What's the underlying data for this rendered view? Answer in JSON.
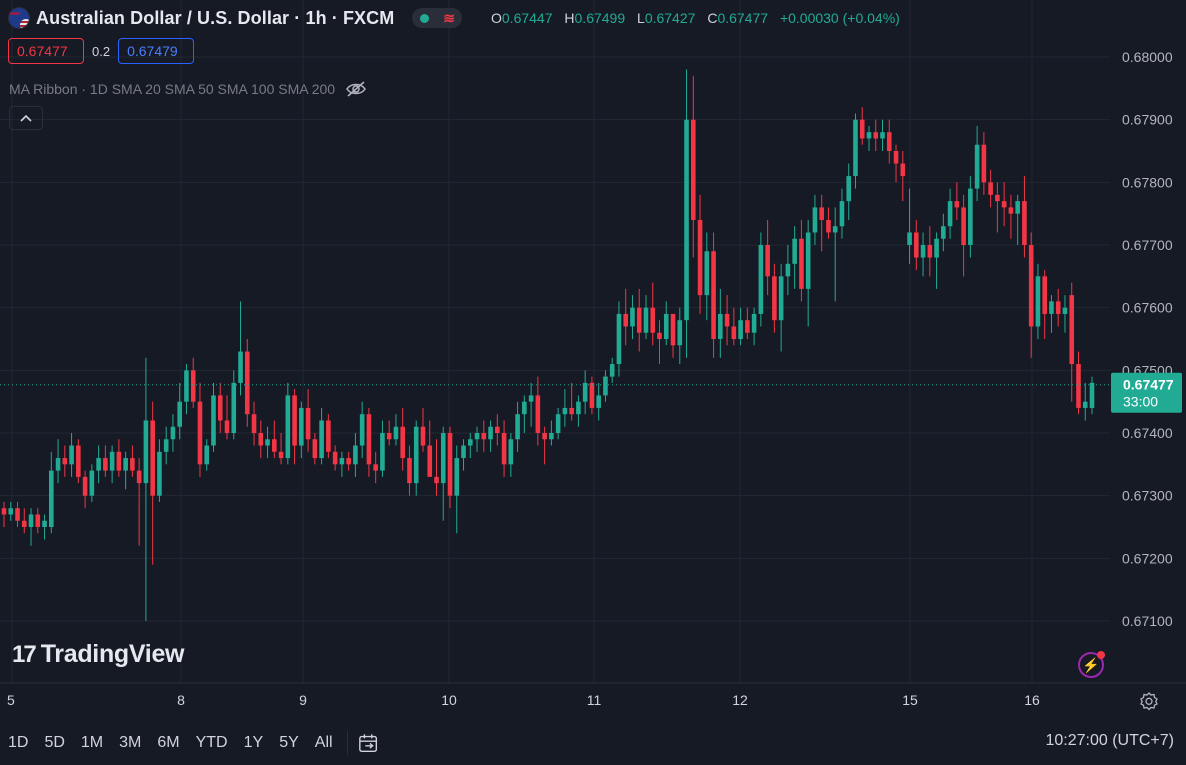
{
  "header": {
    "title": "Australian Dollar / U.S. Dollar · 1h · FXCM",
    "ohlc": [
      {
        "key": "O",
        "value": "0.67447"
      },
      {
        "key": "H",
        "value": "0.67499"
      },
      {
        "key": "L",
        "value": "0.67427"
      },
      {
        "key": "C",
        "value": "0.67477"
      }
    ],
    "change": "+0.00030 (+0.04%)"
  },
  "trade": {
    "sell_price": "0.67477",
    "spread": "0.2",
    "buy_price": "0.67479"
  },
  "indicator": {
    "label": "MA Ribbon · 1D SMA 20 SMA 50 SMA 100 SMA 200"
  },
  "watermark": {
    "mark": "17",
    "text": "TradingView"
  },
  "last_price": {
    "price": "0.67477",
    "countdown": "33:00"
  },
  "range_buttons": [
    "1D",
    "5D",
    "1M",
    "3M",
    "6M",
    "YTD",
    "1Y",
    "5Y",
    "All"
  ],
  "clock": "10:27:00 (UTC+7)",
  "colors": {
    "up": "#22ab94",
    "down": "#f23645",
    "background": "#161a25",
    "grid": "#232733"
  },
  "icons": [
    "flag-aud-usd-icon",
    "eye-off-icon",
    "chevron-up-icon",
    "lightning-icon",
    "gear-icon",
    "calendar-goto-icon"
  ],
  "chart_data": {
    "type": "candlestick",
    "symbol": "AUDUSD",
    "interval": "1h",
    "y_ticks": [
      "0.68000",
      "0.67900",
      "0.67800",
      "0.67700",
      "0.67600",
      "0.67500",
      "0.67400",
      "0.67300",
      "0.67200",
      "0.67100"
    ],
    "x_ticks": [
      "5",
      "8",
      "9",
      "10",
      "11",
      "12",
      "15",
      "16"
    ],
    "ylim": [
      0.6703,
      0.6805
    ],
    "last_price": 0.67477,
    "ohlc": [
      [
        0.6728,
        0.6729,
        0.6725,
        0.6727
      ],
      [
        0.6727,
        0.6729,
        0.6726,
        0.6728
      ],
      [
        0.6728,
        0.6729,
        0.6725,
        0.6726
      ],
      [
        0.6726,
        0.6728,
        0.6724,
        0.6725
      ],
      [
        0.6725,
        0.6728,
        0.6722,
        0.6727
      ],
      [
        0.6727,
        0.6728,
        0.6724,
        0.6725
      ],
      [
        0.6725,
        0.6727,
        0.6723,
        0.6726
      ],
      [
        0.6725,
        0.6737,
        0.6724,
        0.6734
      ],
      [
        0.6734,
        0.6739,
        0.6732,
        0.6736
      ],
      [
        0.6736,
        0.6738,
        0.6733,
        0.6735
      ],
      [
        0.6735,
        0.674,
        0.6733,
        0.6738
      ],
      [
        0.6738,
        0.6739,
        0.6732,
        0.6733
      ],
      [
        0.6733,
        0.6734,
        0.6728,
        0.673
      ],
      [
        0.673,
        0.6735,
        0.6729,
        0.6734
      ],
      [
        0.6734,
        0.6738,
        0.6732,
        0.6736
      ],
      [
        0.6736,
        0.6738,
        0.6733,
        0.6734
      ],
      [
        0.6734,
        0.6738,
        0.6732,
        0.6737
      ],
      [
        0.6737,
        0.6739,
        0.6733,
        0.6734
      ],
      [
        0.6734,
        0.6737,
        0.6731,
        0.6736
      ],
      [
        0.6736,
        0.6738,
        0.6733,
        0.6734
      ],
      [
        0.6734,
        0.6736,
        0.6722,
        0.6732
      ],
      [
        0.6732,
        0.6752,
        0.671,
        0.6742
      ],
      [
        0.6742,
        0.6745,
        0.6719,
        0.673
      ],
      [
        0.673,
        0.6739,
        0.6729,
        0.6737
      ],
      [
        0.6737,
        0.6741,
        0.6735,
        0.6739
      ],
      [
        0.6739,
        0.6743,
        0.6737,
        0.6741
      ],
      [
        0.6741,
        0.6748,
        0.6739,
        0.6745
      ],
      [
        0.6745,
        0.6751,
        0.6743,
        0.675
      ],
      [
        0.675,
        0.6752,
        0.6744,
        0.6745
      ],
      [
        0.6745,
        0.6748,
        0.6733,
        0.6735
      ],
      [
        0.6735,
        0.6739,
        0.6734,
        0.6738
      ],
      [
        0.6738,
        0.6748,
        0.6737,
        0.6746
      ],
      [
        0.6746,
        0.6748,
        0.674,
        0.6742
      ],
      [
        0.6742,
        0.6746,
        0.6739,
        0.674
      ],
      [
        0.674,
        0.675,
        0.6739,
        0.6748
      ],
      [
        0.6748,
        0.6761,
        0.6746,
        0.6753
      ],
      [
        0.6753,
        0.6755,
        0.6741,
        0.6743
      ],
      [
        0.6743,
        0.6745,
        0.6738,
        0.674
      ],
      [
        0.674,
        0.6742,
        0.6736,
        0.6738
      ],
      [
        0.6738,
        0.6741,
        0.6736,
        0.6739
      ],
      [
        0.6739,
        0.6742,
        0.6736,
        0.6737
      ],
      [
        0.6737,
        0.674,
        0.6735,
        0.6736
      ],
      [
        0.6736,
        0.6748,
        0.6735,
        0.6746
      ],
      [
        0.6746,
        0.6747,
        0.6735,
        0.6738
      ],
      [
        0.6738,
        0.6745,
        0.6736,
        0.6744
      ],
      [
        0.6744,
        0.6747,
        0.6737,
        0.6739
      ],
      [
        0.6739,
        0.674,
        0.6735,
        0.6736
      ],
      [
        0.6736,
        0.6744,
        0.6735,
        0.6742
      ],
      [
        0.6742,
        0.6743,
        0.6736,
        0.6737
      ],
      [
        0.6737,
        0.6738,
        0.6734,
        0.6735
      ],
      [
        0.6735,
        0.6737,
        0.6733,
        0.6736
      ],
      [
        0.6736,
        0.6737,
        0.6734,
        0.6735
      ],
      [
        0.6735,
        0.674,
        0.6733,
        0.6738
      ],
      [
        0.6738,
        0.6745,
        0.6736,
        0.6743
      ],
      [
        0.6743,
        0.6744,
        0.6733,
        0.6735
      ],
      [
        0.6735,
        0.6737,
        0.6732,
        0.6734
      ],
      [
        0.6734,
        0.6742,
        0.6733,
        0.674
      ],
      [
        0.674,
        0.6742,
        0.6738,
        0.6739
      ],
      [
        0.6739,
        0.6743,
        0.6738,
        0.6741
      ],
      [
        0.6741,
        0.6744,
        0.6734,
        0.6736
      ],
      [
        0.6736,
        0.6738,
        0.673,
        0.6732
      ],
      [
        0.6732,
        0.6742,
        0.673,
        0.6741
      ],
      [
        0.6741,
        0.6744,
        0.6737,
        0.6738
      ],
      [
        0.6738,
        0.6742,
        0.6733,
        0.6733
      ],
      [
        0.6733,
        0.6739,
        0.673,
        0.6732
      ],
      [
        0.6732,
        0.6741,
        0.6726,
        0.674
      ],
      [
        0.674,
        0.6741,
        0.6728,
        0.673
      ],
      [
        0.673,
        0.6738,
        0.6724,
        0.6736
      ],
      [
        0.6736,
        0.6739,
        0.6734,
        0.6738
      ],
      [
        0.6738,
        0.674,
        0.6736,
        0.6739
      ],
      [
        0.6739,
        0.6741,
        0.6737,
        0.674
      ],
      [
        0.674,
        0.6742,
        0.6737,
        0.6739
      ],
      [
        0.6739,
        0.6742,
        0.6737,
        0.6741
      ],
      [
        0.6741,
        0.6743,
        0.6738,
        0.674
      ],
      [
        0.674,
        0.6742,
        0.6733,
        0.6735
      ],
      [
        0.6735,
        0.674,
        0.6733,
        0.6739
      ],
      [
        0.6739,
        0.6745,
        0.6737,
        0.6743
      ],
      [
        0.6743,
        0.6746,
        0.674,
        0.6745
      ],
      [
        0.6745,
        0.6748,
        0.6741,
        0.6746
      ],
      [
        0.6746,
        0.6749,
        0.6738,
        0.674
      ],
      [
        0.674,
        0.6741,
        0.6735,
        0.6739
      ],
      [
        0.6739,
        0.6742,
        0.6738,
        0.674
      ],
      [
        0.674,
        0.6744,
        0.6739,
        0.6743
      ],
      [
        0.6743,
        0.6747,
        0.6741,
        0.6744
      ],
      [
        0.6744,
        0.6748,
        0.6742,
        0.6743
      ],
      [
        0.6743,
        0.6746,
        0.6741,
        0.6745
      ],
      [
        0.6745,
        0.675,
        0.6743,
        0.6748
      ],
      [
        0.6748,
        0.6749,
        0.6743,
        0.6744
      ],
      [
        0.6744,
        0.6748,
        0.6742,
        0.6746
      ],
      [
        0.6746,
        0.675,
        0.6745,
        0.6749
      ],
      [
        0.6749,
        0.6752,
        0.6748,
        0.6751
      ],
      [
        0.6751,
        0.6761,
        0.6749,
        0.6759
      ],
      [
        0.6759,
        0.6763,
        0.6754,
        0.6757
      ],
      [
        0.6757,
        0.6762,
        0.6755,
        0.676
      ],
      [
        0.676,
        0.6763,
        0.6753,
        0.6756
      ],
      [
        0.6756,
        0.6762,
        0.6755,
        0.676
      ],
      [
        0.676,
        0.6764,
        0.6754,
        0.6756
      ],
      [
        0.6756,
        0.6758,
        0.6751,
        0.6755
      ],
      [
        0.6755,
        0.6761,
        0.6754,
        0.6759
      ],
      [
        0.6759,
        0.6759,
        0.6752,
        0.6754
      ],
      [
        0.6754,
        0.676,
        0.6751,
        0.6758
      ],
      [
        0.6758,
        0.6798,
        0.6752,
        0.679
      ],
      [
        0.679,
        0.6797,
        0.6768,
        0.6774
      ],
      [
        0.6774,
        0.6778,
        0.6759,
        0.6762
      ],
      [
        0.6762,
        0.6772,
        0.6758,
        0.6769
      ],
      [
        0.6769,
        0.6772,
        0.6752,
        0.6755
      ],
      [
        0.6755,
        0.6763,
        0.6752,
        0.6759
      ],
      [
        0.6759,
        0.6762,
        0.6754,
        0.6757
      ],
      [
        0.6757,
        0.676,
        0.6754,
        0.6755
      ],
      [
        0.6755,
        0.676,
        0.6754,
        0.6758
      ],
      [
        0.6758,
        0.676,
        0.6755,
        0.6756
      ],
      [
        0.6756,
        0.676,
        0.6754,
        0.6759
      ],
      [
        0.6759,
        0.6772,
        0.6757,
        0.677
      ],
      [
        0.677,
        0.6774,
        0.6762,
        0.6765
      ],
      [
        0.6765,
        0.6767,
        0.6756,
        0.6758
      ],
      [
        0.6758,
        0.6767,
        0.6753,
        0.6765
      ],
      [
        0.6765,
        0.677,
        0.6762,
        0.6767
      ],
      [
        0.6767,
        0.6773,
        0.6763,
        0.6771
      ],
      [
        0.6771,
        0.6774,
        0.6761,
        0.6763
      ],
      [
        0.6763,
        0.6774,
        0.6757,
        0.6772
      ],
      [
        0.6772,
        0.6778,
        0.677,
        0.6776
      ],
      [
        0.6776,
        0.6778,
        0.6769,
        0.6774
      ],
      [
        0.6774,
        0.6776,
        0.6771,
        0.6772
      ],
      [
        0.6772,
        0.6776,
        0.6761,
        0.6773
      ],
      [
        0.6773,
        0.6779,
        0.6771,
        0.6777
      ],
      [
        0.6777,
        0.6783,
        0.6774,
        0.6781
      ],
      [
        0.6781,
        0.6791,
        0.6779,
        0.679
      ],
      [
        0.679,
        0.6792,
        0.6786,
        0.6787
      ],
      [
        0.6787,
        0.6789,
        0.6785,
        0.6788
      ],
      [
        0.6788,
        0.679,
        0.6785,
        0.6787
      ],
      [
        0.6787,
        0.679,
        0.6785,
        0.6788
      ],
      [
        0.6788,
        0.679,
        0.6783,
        0.6785
      ],
      [
        0.6785,
        0.6786,
        0.678,
        0.6783
      ],
      [
        0.6783,
        0.6785,
        0.6777,
        0.6781
      ],
      [
        0.677,
        0.6779,
        0.6767,
        0.6772
      ],
      [
        0.6772,
        0.6774,
        0.6766,
        0.6768
      ],
      [
        0.6768,
        0.6772,
        0.6765,
        0.677
      ],
      [
        0.677,
        0.6773,
        0.6765,
        0.6768
      ],
      [
        0.6768,
        0.6772,
        0.6763,
        0.6771
      ],
      [
        0.6771,
        0.6775,
        0.6769,
        0.6773
      ],
      [
        0.6773,
        0.6779,
        0.6771,
        0.6777
      ],
      [
        0.6777,
        0.678,
        0.6774,
        0.6776
      ],
      [
        0.6776,
        0.6778,
        0.6765,
        0.677
      ],
      [
        0.677,
        0.6781,
        0.6768,
        0.6779
      ],
      [
        0.6779,
        0.6789,
        0.6777,
        0.6786
      ],
      [
        0.6786,
        0.6788,
        0.6778,
        0.678
      ],
      [
        0.678,
        0.6782,
        0.6776,
        0.6778
      ],
      [
        0.6778,
        0.678,
        0.6772,
        0.6777
      ],
      [
        0.6777,
        0.678,
        0.6773,
        0.6776
      ],
      [
        0.6776,
        0.6778,
        0.6771,
        0.6775
      ],
      [
        0.6775,
        0.6778,
        0.677,
        0.6777
      ],
      [
        0.6777,
        0.6781,
        0.6768,
        0.677
      ],
      [
        0.677,
        0.6772,
        0.6752,
        0.6757
      ],
      [
        0.6757,
        0.6767,
        0.6755,
        0.6765
      ],
      [
        0.6765,
        0.6766,
        0.6755,
        0.6759
      ],
      [
        0.6759,
        0.6762,
        0.6756,
        0.6761
      ],
      [
        0.6761,
        0.6763,
        0.6757,
        0.6759
      ],
      [
        0.6759,
        0.6762,
        0.6756,
        0.676
      ],
      [
        0.6762,
        0.6764,
        0.6745,
        0.6751
      ],
      [
        0.6751,
        0.6753,
        0.6743,
        0.6744
      ],
      [
        0.6744,
        0.6748,
        0.6742,
        0.6745
      ],
      [
        0.6744,
        0.6749,
        0.6743,
        0.6748
      ]
    ]
  }
}
